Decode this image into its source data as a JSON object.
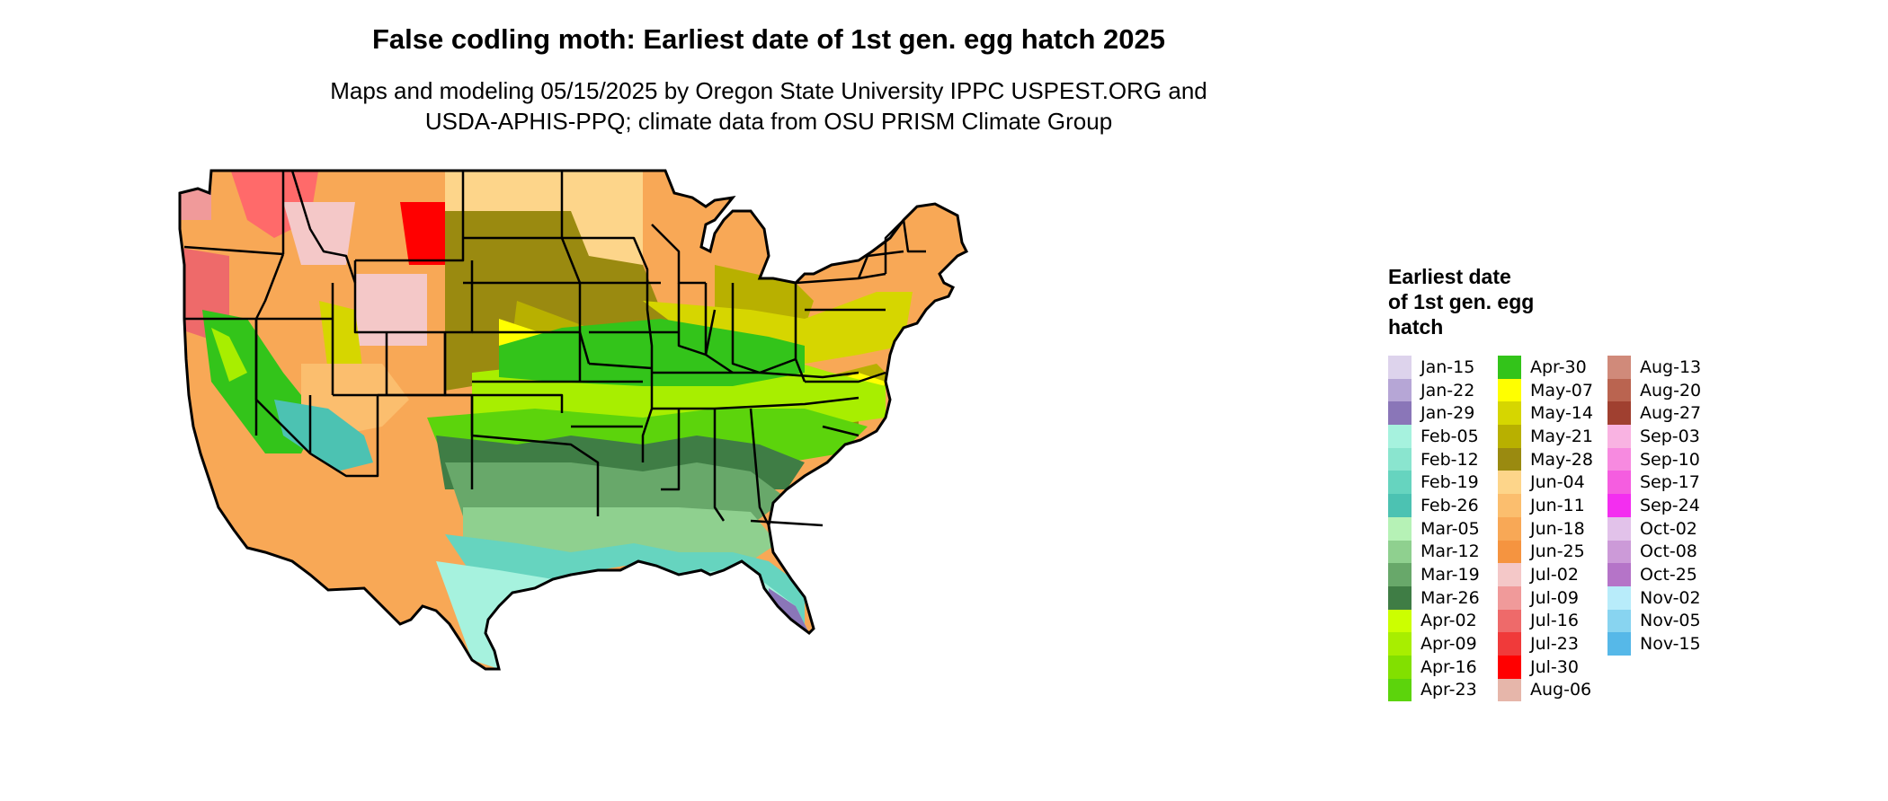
{
  "title": "False codling moth: Earliest date of 1st gen. egg hatch 2025",
  "subtitle_line1": "Maps and modeling 05/15/2025 by Oregon State University IPPC USPEST.ORG and",
  "subtitle_line2": "USDA-APHIS-PPQ; climate data from OSU PRISM Climate Group",
  "legend": {
    "title_lines": [
      "Earliest date",
      "of 1st gen. egg",
      "hatch"
    ],
    "columns": [
      [
        {
          "label": "Jan-15",
          "color": "#ddd3ec"
        },
        {
          "label": "Jan-22",
          "color": "#b6a6d6"
        },
        {
          "label": "Jan-29",
          "color": "#8a76b8"
        },
        {
          "label": "Feb-05",
          "color": "#a6f2de"
        },
        {
          "label": "Feb-12",
          "color": "#8ae5cf"
        },
        {
          "label": "Feb-19",
          "color": "#66d4bf"
        },
        {
          "label": "Feb-26",
          "color": "#4cc2b2"
        },
        {
          "label": "Mar-05",
          "color": "#b6f2b6"
        },
        {
          "label": "Mar-12",
          "color": "#8fd08f"
        },
        {
          "label": "Mar-19",
          "color": "#68a86a"
        },
        {
          "label": "Mar-26",
          "color": "#3f7d45"
        },
        {
          "label": "Apr-02",
          "color": "#ccff00"
        },
        {
          "label": "Apr-09",
          "color": "#a8ee00"
        },
        {
          "label": "Apr-16",
          "color": "#82e000"
        },
        {
          "label": "Apr-23",
          "color": "#5cd40c"
        }
      ],
      [
        {
          "label": "Apr-30",
          "color": "#33c41a"
        },
        {
          "label": "May-07",
          "color": "#ffff00"
        },
        {
          "label": "May-14",
          "color": "#d6d600"
        },
        {
          "label": "May-21",
          "color": "#b8b000"
        },
        {
          "label": "May-28",
          "color": "#9a8a10"
        },
        {
          "label": "Jun-04",
          "color": "#fdd58a"
        },
        {
          "label": "Jun-11",
          "color": "#fbbe6e"
        },
        {
          "label": "Jun-18",
          "color": "#f8a856"
        },
        {
          "label": "Jun-25",
          "color": "#f59440"
        },
        {
          "label": "Jul-02",
          "color": "#f4c8c8"
        },
        {
          "label": "Jul-09",
          "color": "#f09a9a"
        },
        {
          "label": "Jul-16",
          "color": "#ee6a6a"
        },
        {
          "label": "Jul-23",
          "color": "#f03a3a"
        },
        {
          "label": "Jul-30",
          "color": "#ff0000"
        },
        {
          "label": "Aug-06",
          "color": "#e6b6aa"
        }
      ],
      [
        {
          "label": "Aug-13",
          "color": "#d08a7a"
        },
        {
          "label": "Aug-20",
          "color": "#ba6450"
        },
        {
          "label": "Aug-27",
          "color": "#a04030"
        },
        {
          "label": "Sep-03",
          "color": "#f9b3e2"
        },
        {
          "label": "Sep-10",
          "color": "#f78ae0"
        },
        {
          "label": "Sep-17",
          "color": "#f55de0"
        },
        {
          "label": "Sep-24",
          "color": "#f32ef0"
        },
        {
          "label": "Oct-02",
          "color": "#e2c2ea"
        },
        {
          "label": "Oct-08",
          "color": "#cc9ad8"
        },
        {
          "label": "Oct-25",
          "color": "#b574c8"
        },
        {
          "label": "Nov-02",
          "color": "#b8ecfa"
        },
        {
          "label": "Nov-05",
          "color": "#88d4f0"
        },
        {
          "label": "Nov-15",
          "color": "#56b8e8"
        }
      ]
    ]
  }
}
